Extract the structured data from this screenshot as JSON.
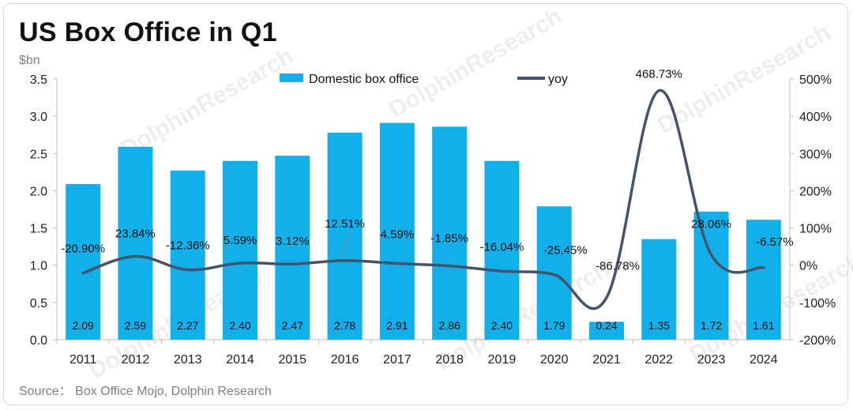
{
  "title": "US Box Office in Q1",
  "unit": "$bn",
  "source": "Source：  Box Office Mojo, Dolphin Research",
  "watermark": "DolphinResearch",
  "chart_data": {
    "type": "bar+line",
    "categories": [
      "2011",
      "2012",
      "2013",
      "2014",
      "2015",
      "2016",
      "2017",
      "2018",
      "2019",
      "2020",
      "2021",
      "2022",
      "2023",
      "2024"
    ],
    "series": [
      {
        "name": "Domestic box office",
        "type": "bar",
        "axis": "left",
        "color": "#12b0ea",
        "values": [
          2.09,
          2.59,
          2.27,
          2.4,
          2.47,
          2.78,
          2.91,
          2.86,
          2.4,
          1.79,
          0.24,
          1.35,
          1.72,
          1.61
        ],
        "labels": [
          "2.09",
          "2.59",
          "2.27",
          "2.40",
          "2.47",
          "2.78",
          "2.91",
          "2.86",
          "2.40",
          "1.79",
          "0.24",
          "1.35",
          "1.72",
          "1.61"
        ]
      },
      {
        "name": "yoy",
        "type": "line",
        "axis": "right",
        "color": "#44546a",
        "smooth": true,
        "values": [
          -20.9,
          23.84,
          -12.36,
          5.59,
          3.12,
          12.51,
          4.59,
          -1.85,
          -16.04,
          -25.45,
          -86.78,
          468.73,
          28.06,
          -6.57
        ],
        "labels": [
          "-20.90%",
          "23.84%",
          "-12.36%",
          "5.59%",
          "3.12%",
          "12.51%",
          "4.59%",
          "-1.85%",
          "-16.04%",
          "-25.45%",
          "-86.78%",
          "468.73%",
          "28.06%",
          "-6.57%"
        ]
      }
    ],
    "y_left": {
      "range": [
        0,
        3.5
      ],
      "ticks": [
        "0.0",
        "0.5",
        "1.0",
        "1.5",
        "2.0",
        "2.5",
        "3.0",
        "3.5"
      ]
    },
    "y_right": {
      "range": [
        -200,
        500
      ],
      "ticks": [
        "-200%",
        "-100%",
        "0%",
        "100%",
        "200%",
        "300%",
        "400%",
        "500%"
      ]
    },
    "legend": [
      "Domestic box office",
      "yoy"
    ],
    "legend_position": "top-center",
    "grid": false
  }
}
